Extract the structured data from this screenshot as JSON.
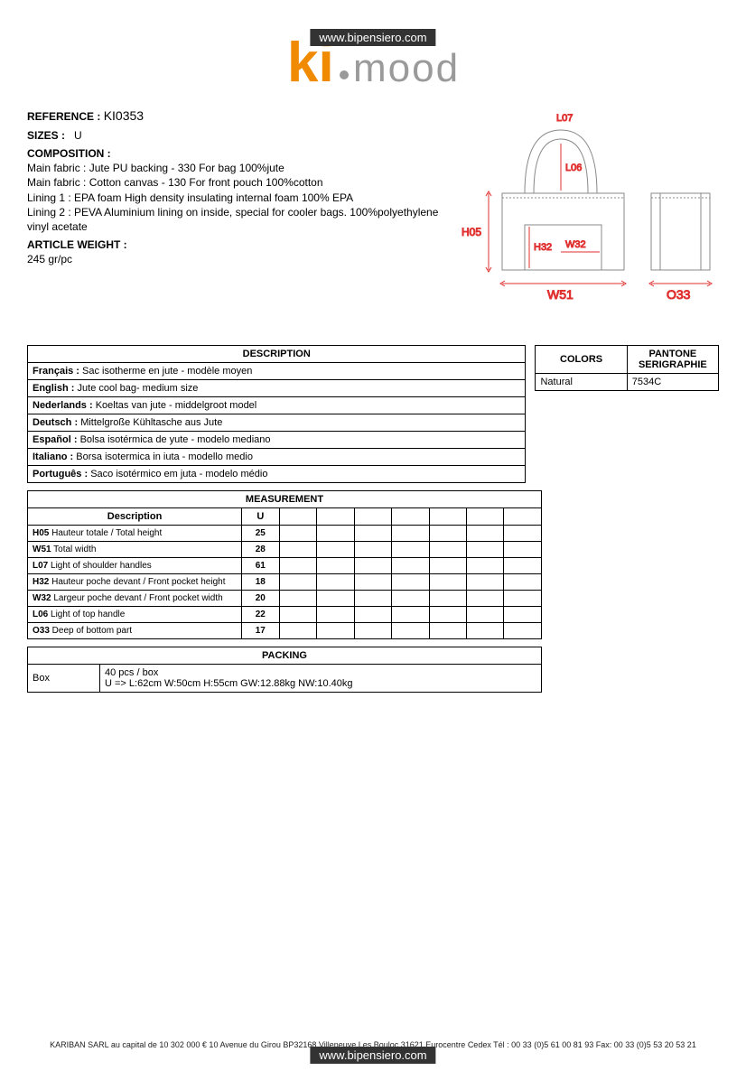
{
  "url_badge": "www.bipensiero.com",
  "logo": {
    "text1": "ki",
    "text2": "mood",
    "color_orange": "#f08a00",
    "color_gray": "#9a9a9a"
  },
  "reference": {
    "label": "REFERENCE :",
    "value": "KI0353"
  },
  "sizes": {
    "label": "SIZES :",
    "value": "U"
  },
  "composition": {
    "label": "COMPOSITION :",
    "lines": [
      "Main fabric : Jute PU backing - 330 For bag 100%jute",
      "Main fabric : Cotton canvas - 130 For front pouch 100%cotton",
      "Lining 1 : EPA foam High density insulating internal foam 100% EPA",
      "Lining 2 : PEVA Aluminium lining on inside, special for cooler bags. 100%polyethylene vinyl acetate"
    ]
  },
  "article_weight": {
    "label": "ARTICLE WEIGHT :",
    "value": "245 gr/pc"
  },
  "diagram": {
    "labels": {
      "L07": "L07",
      "L06": "L06",
      "H05": "H05",
      "H32": "H32",
      "W32": "W32",
      "W51": "W51",
      "O33": "O33"
    },
    "label_color": "#e03030",
    "line_color": "#888"
  },
  "description": {
    "title": "DESCRIPTION",
    "rows": [
      {
        "lang": "Français :",
        "text": "Sac isotherme en jute - modèle moyen"
      },
      {
        "lang": "English :",
        "text": "Jute cool bag- medium size"
      },
      {
        "lang": "Nederlands :",
        "text": "Koeltas van jute - middelgroot model"
      },
      {
        "lang": "Deutsch :",
        "text": "Mittelgroße Kühltasche aus Jute"
      },
      {
        "lang": "Español :",
        "text": "Bolsa isotérmica de yute - modelo mediano"
      },
      {
        "lang": "Italiano :",
        "text": "Borsa isotermica in iuta - modello medio"
      },
      {
        "lang": "Português :",
        "text": "Saco isotérmico em juta - modelo médio"
      }
    ]
  },
  "colors": {
    "title1": "COLORS",
    "title2": "PANTONE SERIGRAPHIE",
    "rows": [
      {
        "name": "Natural",
        "pantone": "7534C"
      }
    ]
  },
  "measurement": {
    "title": "MEASUREMENT",
    "col_desc": "Description",
    "col_u": "U",
    "rows": [
      {
        "code": "H05",
        "desc": "Hauteur totale / Total height",
        "u": "25"
      },
      {
        "code": "W51",
        "desc": "Total width",
        "u": "28"
      },
      {
        "code": "L07",
        "desc": "Light of shoulder handles",
        "u": "61"
      },
      {
        "code": "H32",
        "desc": "Hauteur poche devant / Front pocket height",
        "u": "18"
      },
      {
        "code": "W32",
        "desc": "Largeur poche devant / Front pocket width",
        "u": "20"
      },
      {
        "code": "L06",
        "desc": "Light of top handle",
        "u": "22"
      },
      {
        "code": "O33",
        "desc": "Deep of bottom part",
        "u": "17"
      }
    ]
  },
  "packing": {
    "title": "PACKING",
    "label": "Box",
    "line1": "40 pcs / box",
    "line2": "U => L:62cm W:50cm H:55cm GW:12.88kg NW:10.40kg"
  },
  "footer": "KARIBAN SARL au capital de 10 302 000 € 10 Avenue du Girou BP32168 Villeneuve Les Bouloc 31621 Eurocentre Cedex Tél : 00 33 (0)5 61 00 81 93 Fax: 00 33 (0)5 53 20 53 21"
}
